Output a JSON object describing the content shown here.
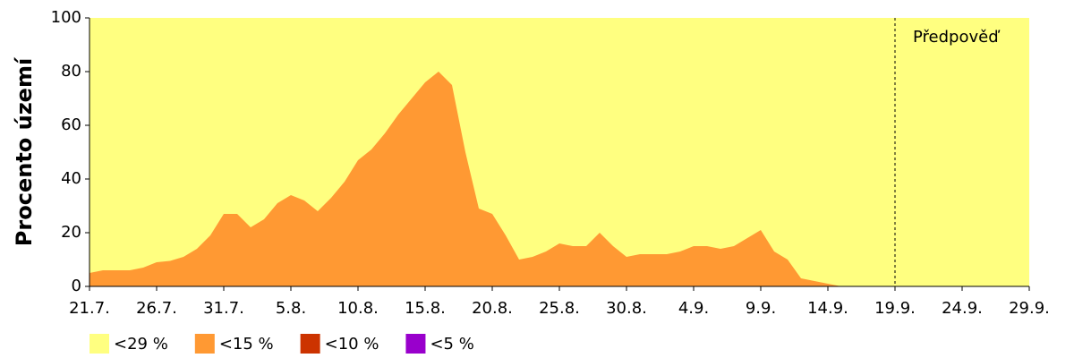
{
  "chart_data": {
    "type": "area",
    "stacked": false,
    "y_label": "Procento území",
    "categories": [
      "21.7.",
      null,
      null,
      null,
      null,
      "26.7.",
      null,
      null,
      null,
      null,
      "31.7.",
      null,
      null,
      null,
      null,
      "5.8.",
      null,
      null,
      null,
      null,
      "10.8.",
      null,
      null,
      null,
      null,
      "15.8.",
      null,
      null,
      null,
      null,
      "20.8.",
      null,
      null,
      null,
      null,
      "25.8.",
      null,
      null,
      null,
      null,
      "30.8.",
      null,
      null,
      null,
      null,
      "4.9.",
      null,
      null,
      null,
      null,
      "9.9.",
      null,
      null,
      null,
      null,
      "14.9.",
      null,
      null,
      null,
      null,
      "19.9.",
      null,
      null,
      null,
      null,
      "24.9.",
      null,
      null,
      null,
      null,
      "29.9."
    ],
    "series": [
      {
        "name": "<29 %",
        "color": "#ffff80",
        "values": [
          100,
          100,
          100,
          100,
          100,
          100,
          100,
          100,
          100,
          100,
          100,
          100,
          100,
          100,
          100,
          100,
          100,
          100,
          100,
          100,
          100,
          100,
          100,
          100,
          100,
          100,
          100,
          100,
          100,
          100,
          100,
          100,
          100,
          100,
          100,
          100,
          100,
          100,
          100,
          100,
          100,
          100,
          100,
          100,
          100,
          100,
          100,
          100,
          100,
          100,
          100,
          100,
          100,
          100,
          100,
          100,
          100,
          100,
          100,
          100,
          100,
          100,
          100,
          100,
          100,
          100,
          100,
          100,
          100,
          100,
          100
        ]
      },
      {
        "name": "<15 %",
        "color": "#ff9933",
        "values": [
          5,
          6,
          6,
          6,
          7,
          9,
          9.5,
          11,
          14,
          19,
          27,
          27,
          22,
          25,
          31,
          34,
          32,
          28,
          33,
          39,
          47,
          51,
          57,
          64,
          70,
          76,
          80,
          75,
          50,
          29,
          27,
          19,
          10,
          11,
          13,
          16,
          15,
          15,
          20,
          15,
          11,
          12,
          12,
          12,
          13,
          15,
          15,
          14,
          15,
          18,
          21,
          13,
          10,
          3,
          2,
          1,
          0,
          0,
          0,
          0,
          0,
          0,
          0,
          0,
          0,
          0,
          0,
          0,
          0,
          0,
          0
        ]
      },
      {
        "name": "<10 %",
        "color": "#cc3300",
        "values": [
          0,
          0,
          0,
          0,
          0,
          0,
          0,
          0,
          0,
          0,
          0,
          0,
          0,
          0,
          0,
          0,
          0,
          0,
          0,
          0,
          0,
          0,
          0,
          0,
          0,
          0,
          0,
          0,
          0,
          0,
          0,
          0,
          0,
          0,
          0,
          0,
          0,
          0,
          0,
          0,
          0,
          0,
          0,
          0,
          0,
          0,
          0,
          0,
          0,
          0,
          0,
          0,
          0,
          0,
          0,
          0,
          0,
          0,
          0,
          0,
          0,
          0,
          0,
          0,
          0,
          0,
          0,
          0,
          0,
          0,
          0
        ]
      },
      {
        "name": "<5 %",
        "color": "#9900cc",
        "values": [
          0,
          0,
          0,
          0,
          0,
          0,
          0,
          0,
          0,
          0,
          0,
          0,
          0,
          0,
          0,
          0,
          0,
          0,
          0,
          0,
          0,
          0,
          0,
          0,
          0,
          0,
          0,
          0,
          0,
          0,
          0,
          0,
          0,
          0,
          0,
          0,
          0,
          0,
          0,
          0,
          0,
          0,
          0,
          0,
          0,
          0,
          0,
          0,
          0,
          0,
          0,
          0,
          0,
          0,
          0,
          0,
          0,
          0,
          0,
          0,
          0,
          0,
          0,
          0,
          0,
          0,
          0,
          0,
          0,
          0,
          0
        ]
      }
    ],
    "ylim": [
      0,
      100
    ],
    "yticks": [
      0,
      20,
      40,
      60,
      80,
      100
    ],
    "grid": false,
    "annotations": [
      {
        "text": "Předpověď",
        "x": "19.9."
      }
    ]
  }
}
